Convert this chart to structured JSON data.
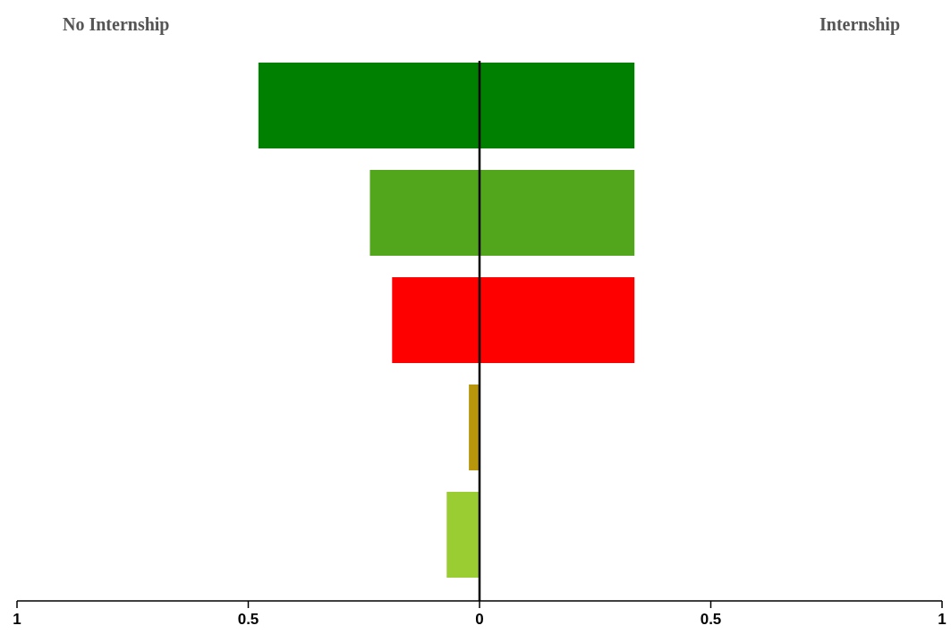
{
  "chart_data": {
    "type": "bar",
    "orientation": "horizontal",
    "stacked": true,
    "categories": [
      null,
      null,
      null,
      null,
      null
    ],
    "series": [
      {
        "colors": [
          "#008000",
          "#52a61c",
          "#ff0000",
          "#b8960c",
          "#9acd32"
        ],
        "values": [
          -0.478,
          -0.237,
          -0.189,
          -0.023,
          -0.071
        ]
      },
      {
        "colors": [
          "#008000",
          "#52a61c",
          "#ff0000",
          "#b8960c",
          "#9acd32"
        ],
        "values": [
          0.335,
          0.335,
          0.335,
          0,
          0
        ]
      }
    ],
    "xlim": [
      -1,
      1
    ],
    "xticks": [
      {
        "value": -1,
        "label": "1"
      },
      {
        "value": -0.5,
        "label": "0.5"
      },
      0,
      0.5,
      1
    ],
    "ref_lines": [
      {
        "axis": "x",
        "value": 0,
        "color": "#000000"
      }
    ],
    "annotations": [
      "No Internship",
      "Internship"
    ],
    "grid": false
  }
}
